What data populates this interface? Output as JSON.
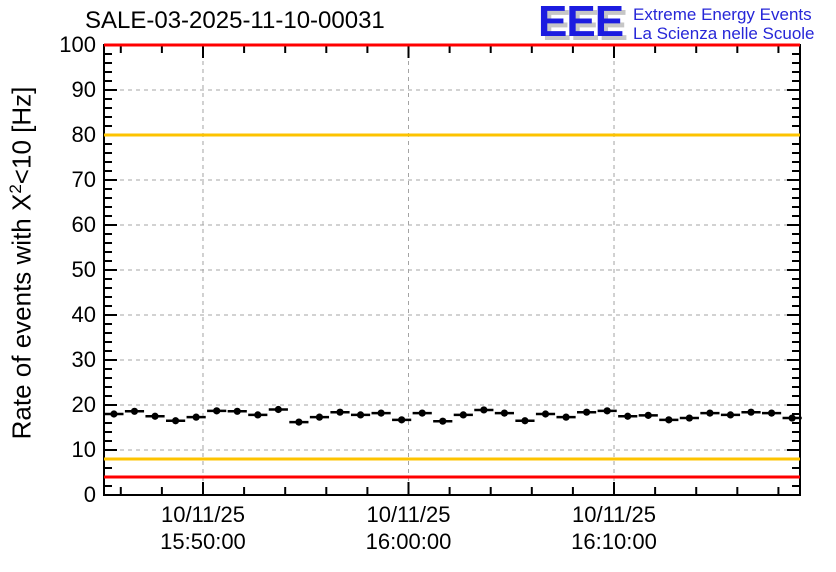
{
  "header": {
    "title": "SALE-03-2025-11-10-00031",
    "logo": {
      "letters": "EEE",
      "line1": "Extreme Energy Events",
      "line2": "La Scienza nelle Scuole",
      "letter_color": "#1c1ce0",
      "shadow_color": "#c6c6c6",
      "text_color": "#2626d8"
    }
  },
  "chart_data": {
    "type": "scatter",
    "title": "SALE-03-2025-11-10-00031",
    "ylabel": "Rate of events with X^2<10 [Hz]",
    "ylabel_parts": {
      "pre": "Rate of events with X",
      "sup": "2",
      "post": "<10 [Hz]"
    },
    "xlabel": "",
    "ylim": [
      0,
      100
    ],
    "xlim": [
      "15:45:11",
      "16:19:03"
    ],
    "grid": true,
    "y_major_step": 10,
    "y_minor_step": 2,
    "x_minor_step_s": 120,
    "y_tick_labels": [
      "0",
      "10",
      "20",
      "30",
      "40",
      "50",
      "60",
      "70",
      "80",
      "90",
      "100"
    ],
    "x_major_ticks": [
      {
        "date": "10/11/25",
        "time": "15:50:00"
      },
      {
        "date": "10/11/25",
        "time": "16:00:00"
      },
      {
        "date": "10/11/25",
        "time": "16:10:00"
      }
    ],
    "reference_lines": [
      {
        "name": "red-upper",
        "y": 100,
        "color": "#ff0000"
      },
      {
        "name": "yellow-upper",
        "y": 80,
        "color": "#fdc300"
      },
      {
        "name": "yellow-lower",
        "y": 8,
        "color": "#fdc300"
      },
      {
        "name": "red-lower",
        "y": 4,
        "color": "#ff0000"
      }
    ],
    "series": [
      {
        "name": "event-rate",
        "color": "#000000",
        "marker": "circle",
        "x_err_s": 28,
        "y_err": 0.6,
        "x_times": [
          "15:45:40",
          "15:46:40",
          "15:47:40",
          "15:48:40",
          "15:49:40",
          "15:50:40",
          "15:51:40",
          "15:52:40",
          "15:53:40",
          "15:54:40",
          "15:55:40",
          "15:56:40",
          "15:57:40",
          "15:58:40",
          "15:59:40",
          "16:00:40",
          "16:01:40",
          "16:02:40",
          "16:03:40",
          "16:04:40",
          "16:05:40",
          "16:06:40",
          "16:07:40",
          "16:08:40",
          "16:09:40",
          "16:10:40",
          "16:11:40",
          "16:12:40",
          "16:13:40",
          "16:14:40",
          "16:15:40",
          "16:16:40",
          "16:17:40",
          "16:18:40"
        ],
        "values": [
          18.0,
          18.6,
          17.5,
          16.5,
          17.3,
          18.7,
          18.6,
          17.8,
          19.0,
          16.2,
          17.3,
          18.4,
          17.8,
          18.2,
          16.7,
          18.2,
          16.4,
          17.8,
          18.9,
          18.2,
          16.5,
          18.0,
          17.3,
          18.4,
          18.7,
          17.5,
          17.7,
          16.7,
          17.1,
          18.2,
          17.8,
          18.4,
          18.2,
          17.1
        ]
      }
    ]
  }
}
